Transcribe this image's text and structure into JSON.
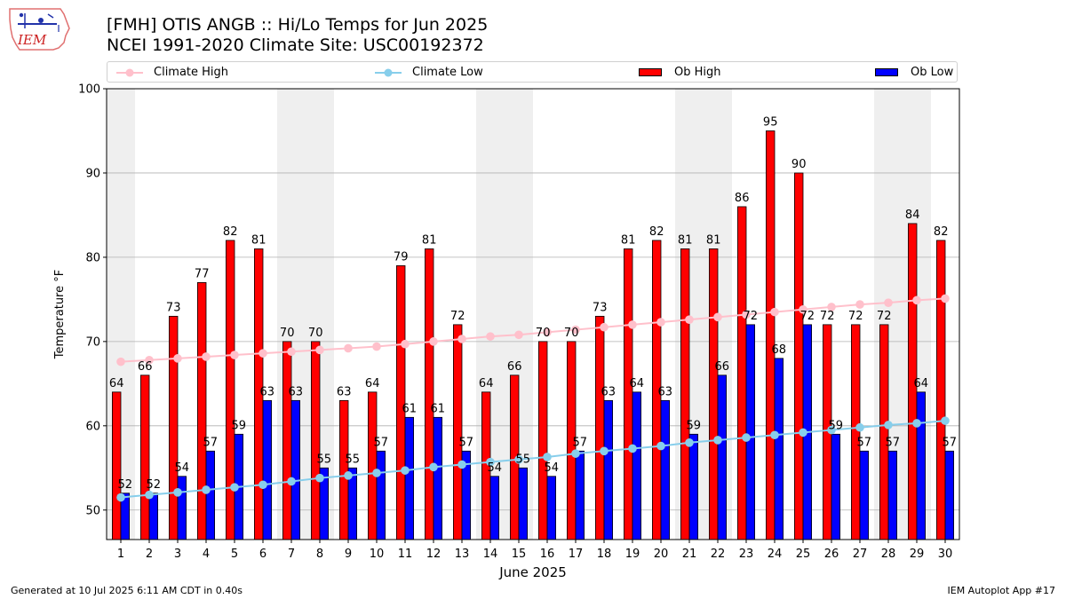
{
  "header": {
    "logo_text": "IEM",
    "title_line1": "[FMH] OTIS ANGB :: Hi/Lo Temps for Jun 2025",
    "title_line2": "NCEI 1991-2020 Climate Site: USC00192372"
  },
  "legend": {
    "climate_high": "Climate High",
    "climate_low": "Climate Low",
    "ob_high": "Ob High",
    "ob_low": "Ob Low"
  },
  "footer": {
    "left": "Generated at 10 Jul 2025 6:11 AM CDT in 0.40s",
    "right": "IEM Autoplot App #17"
  },
  "colors": {
    "ob_high": "#ff0000",
    "ob_low": "#0000ff",
    "climate_high": "#ffc0cb",
    "climate_low": "#87ceeb",
    "weekend_shade": "#efefef",
    "grid": "#b0b0b0"
  },
  "chart_data": {
    "type": "bar",
    "xlabel": "June 2025",
    "ylabel": "Temperature °F",
    "ylim": [
      46.5,
      100
    ],
    "yticks": [
      50,
      60,
      70,
      80,
      90,
      100
    ],
    "grid": "horizontal",
    "legend_position": "top",
    "shaded_weekend_days": [
      1,
      7,
      8,
      14,
      15,
      21,
      22,
      28,
      29
    ],
    "categories": [
      "1",
      "2",
      "3",
      "4",
      "5",
      "6",
      "7",
      "8",
      "9",
      "10",
      "11",
      "12",
      "13",
      "14",
      "15",
      "16",
      "17",
      "18",
      "19",
      "20",
      "21",
      "22",
      "23",
      "24",
      "25",
      "26",
      "27",
      "28",
      "29",
      "30"
    ],
    "series": [
      {
        "name": "Ob High",
        "kind": "bar",
        "values": [
          64,
          66,
          73,
          77,
          82,
          81,
          70,
          70,
          63,
          64,
          79,
          81,
          72,
          64,
          66,
          70,
          70,
          73,
          81,
          82,
          81,
          81,
          86,
          95,
          90,
          72,
          72,
          72,
          84,
          82
        ]
      },
      {
        "name": "Ob Low",
        "kind": "bar",
        "values": [
          52,
          52,
          54,
          57,
          59,
          63,
          63,
          55,
          55,
          57,
          61,
          61,
          57,
          54,
          55,
          54,
          57,
          63,
          64,
          63,
          59,
          66,
          72,
          68,
          72,
          59,
          57,
          57,
          64,
          57
        ]
      },
      {
        "name": "Climate High",
        "kind": "line",
        "values": [
          67.6,
          67.8,
          68.0,
          68.2,
          68.4,
          68.6,
          68.8,
          69.0,
          69.2,
          69.4,
          69.7,
          70.0,
          70.3,
          70.6,
          70.8,
          71.1,
          71.4,
          71.7,
          72.0,
          72.3,
          72.6,
          72.9,
          73.2,
          73.5,
          73.8,
          74.1,
          74.4,
          74.6,
          74.9,
          75.1
        ]
      },
      {
        "name": "Climate Low",
        "kind": "line",
        "values": [
          51.5,
          51.8,
          52.1,
          52.4,
          52.7,
          53.0,
          53.4,
          53.8,
          54.1,
          54.4,
          54.7,
          55.1,
          55.4,
          55.7,
          56.0,
          56.3,
          56.7,
          57.0,
          57.3,
          57.6,
          58.0,
          58.3,
          58.6,
          58.9,
          59.2,
          59.5,
          59.8,
          60.1,
          60.3,
          60.6
        ]
      }
    ]
  }
}
